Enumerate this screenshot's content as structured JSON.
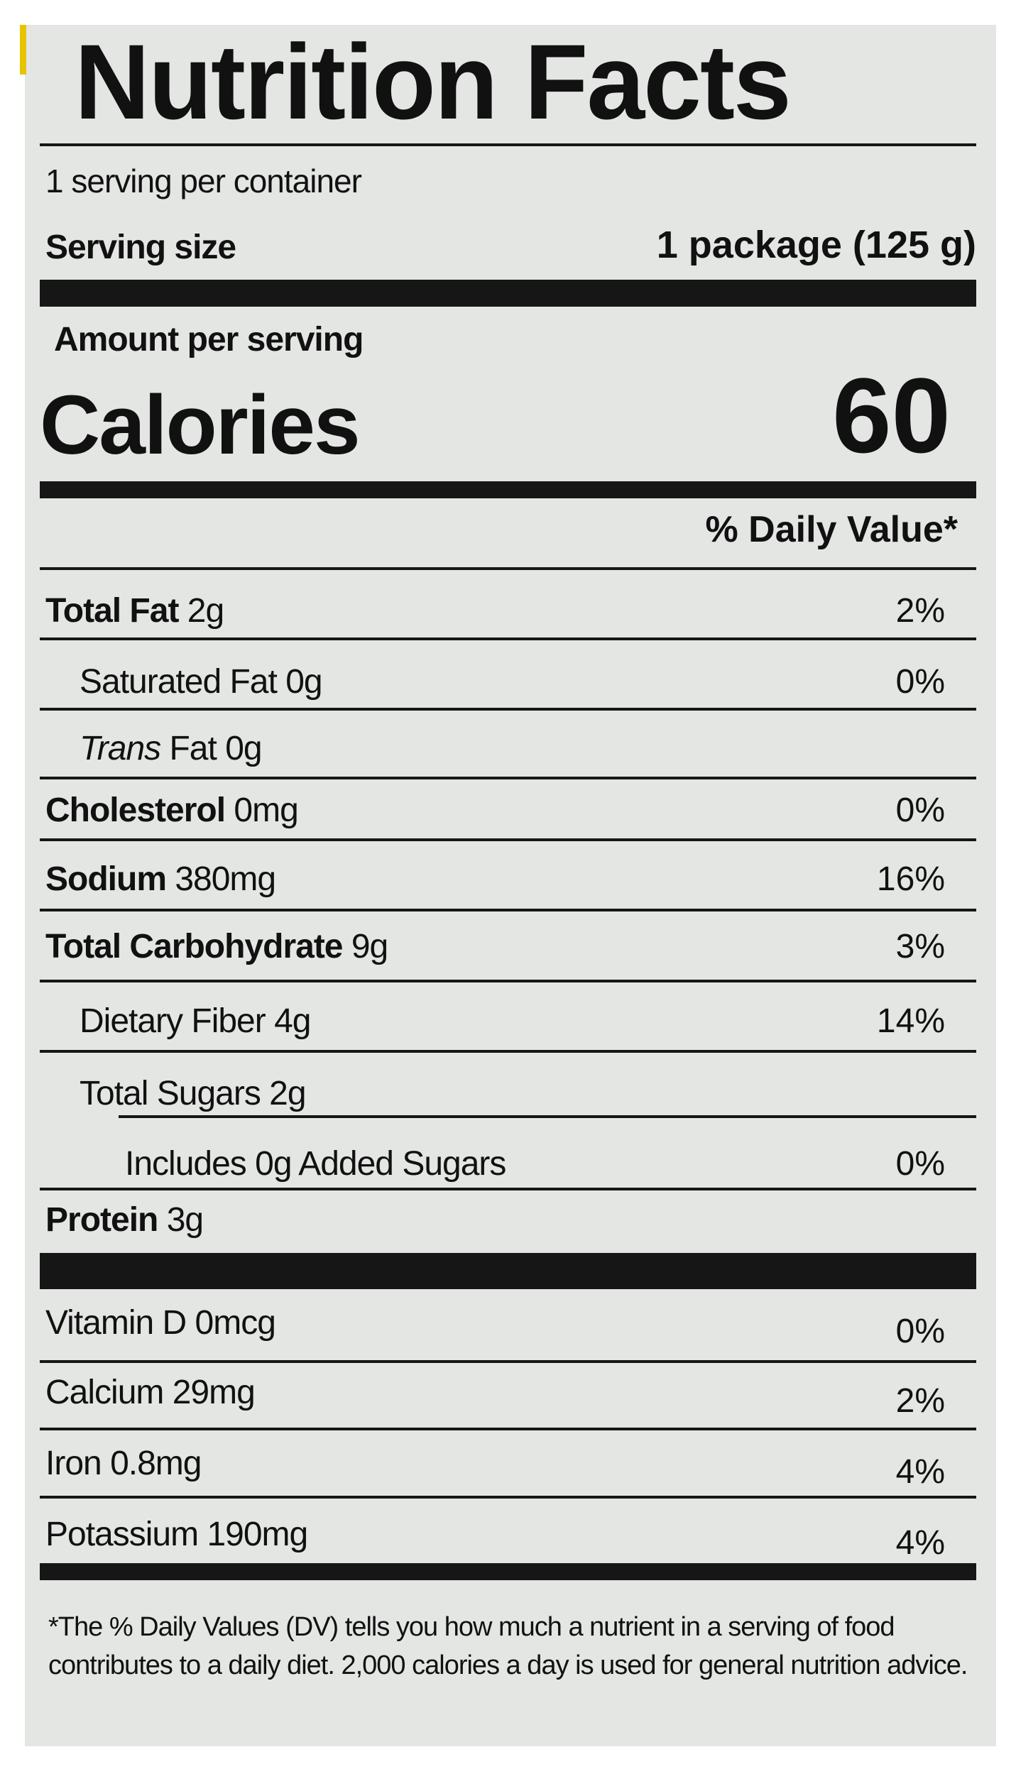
{
  "title": "Nutrition Facts",
  "servings_per_container": "1 serving per container",
  "serving_size_label": "Serving size",
  "serving_size_value": "1 package (125 g)",
  "amount_per_serving": "Amount per serving",
  "calories_label": "Calories",
  "calories_value": "60",
  "daily_value_header": "% Daily Value*",
  "nutrients": [
    {
      "name": "Total Fat",
      "amount": "2g",
      "dv": "2%",
      "bold": true,
      "indent": 0
    },
    {
      "name": "Saturated Fat",
      "amount": "0g",
      "dv": "0%",
      "bold": false,
      "indent": 1
    },
    {
      "name": "Trans",
      "name_suffix": "Fat",
      "amount": "0g",
      "dv": "",
      "bold": false,
      "italic": true,
      "indent": 1
    },
    {
      "name": "Cholesterol",
      "amount": "0mg",
      "dv": "0%",
      "bold": true,
      "indent": 0
    },
    {
      "name": "Sodium",
      "amount": "380mg",
      "dv": "16%",
      "bold": true,
      "indent": 0
    },
    {
      "name": "Total Carbohydrate",
      "amount": "9g",
      "dv": "3%",
      "bold": true,
      "indent": 0
    },
    {
      "name": "Dietary Fiber",
      "amount": "4g",
      "dv": "14%",
      "bold": false,
      "indent": 1
    },
    {
      "name": "Total Sugars",
      "amount": "2g",
      "dv": "",
      "bold": false,
      "indent": 1
    },
    {
      "name": "Includes 0g Added Sugars",
      "amount": "",
      "dv": "0%",
      "bold": false,
      "indent": 2
    },
    {
      "name": "Protein",
      "amount": "3g",
      "dv": "",
      "bold": true,
      "indent": 0
    }
  ],
  "vitamins": [
    {
      "name": "Vitamin D",
      "amount": "0mcg",
      "dv": "0%"
    },
    {
      "name": "Calcium",
      "amount": "29mg",
      "dv": "2%"
    },
    {
      "name": "Iron",
      "amount": "0.8mg",
      "dv": "4%"
    },
    {
      "name": "Potassium",
      "amount": "190mg",
      "dv": "4%"
    }
  ],
  "footnote": "*The % Daily Values (DV) tells you how much a nutrient in a serving of food contributes to a daily diet. 2,000 calories a day is used for general nutrition advice."
}
